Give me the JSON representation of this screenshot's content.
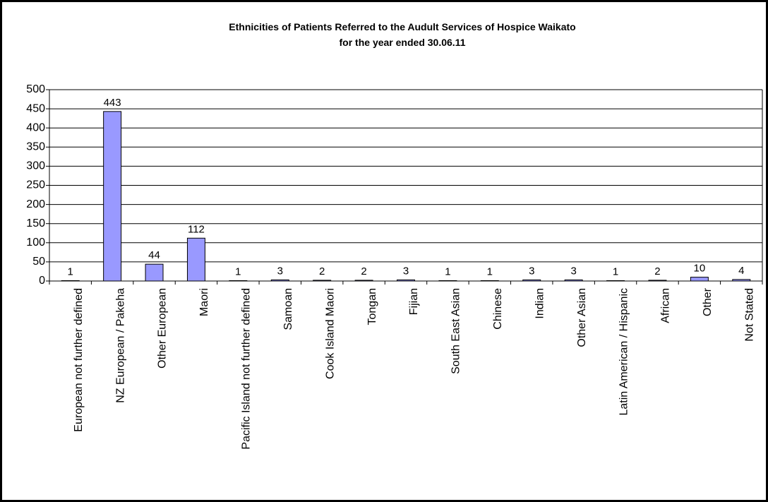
{
  "chart_data": {
    "type": "bar",
    "title": "Ethnicities of Patients Referred to the Audult Services of Hospice Waikato",
    "subtitle": "for the year ended 30.06.11",
    "categories": [
      "European not further defined",
      "NZ European / Pakeha",
      "Other European",
      "Maori",
      "Pacific Island not further defined",
      "Samoan",
      "Cook Island Maori",
      "Tongan",
      "Fijian",
      "South East Asian",
      "Chinese",
      "Indian",
      "Other Asian",
      "Latin American / Hispanic",
      "African",
      "Other",
      "Not Stated"
    ],
    "values": [
      1,
      443,
      44,
      112,
      1,
      3,
      2,
      2,
      3,
      1,
      1,
      3,
      3,
      1,
      2,
      10,
      4
    ],
    "color": "#9999ff",
    "ylim": [
      0,
      500
    ],
    "yticks": [
      0,
      50,
      100,
      150,
      200,
      250,
      300,
      350,
      400,
      450,
      500
    ],
    "grid": true
  }
}
